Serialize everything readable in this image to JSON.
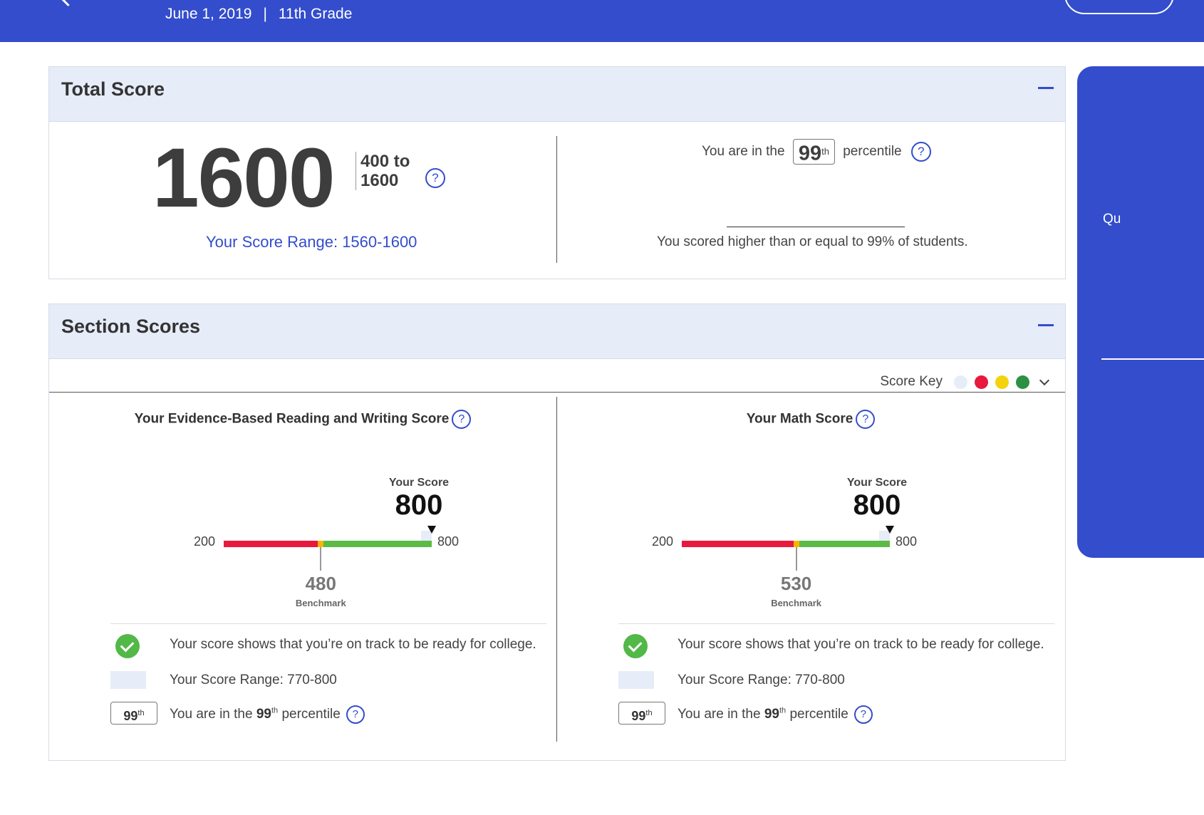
{
  "header": {
    "test_date": "June 1, 2019",
    "separator": "|",
    "grade": "11th Grade"
  },
  "side_panel": {
    "label": "Qu"
  },
  "total_score": {
    "title": "Total Score",
    "score": "1600",
    "range_top": "400 to",
    "range_bottom": "1600",
    "score_range": "Your Score Range: 1560-1600",
    "percentile_prefix": "You are in the",
    "percentile_value": "99",
    "percentile_suffix_sup": "th",
    "percentile_suffix": "percentile",
    "percentile_note": "You scored higher than or equal to 99% of students."
  },
  "section_scores": {
    "title": "Section Scores",
    "score_key_label": "Score Key",
    "score_key_colors": [
      "#e6ecf8",
      "#e8193c",
      "#f5d20d",
      "#2c9142"
    ],
    "sections": [
      {
        "title": "Your Evidence-Based Reading and Writing Score",
        "your_score_label": "Your Score",
        "score": "800",
        "score_value": 800,
        "scale_min": "200",
        "scale_max": "800",
        "min_value": 200,
        "max_value": 800,
        "benchmark": "480",
        "benchmark_value": 480,
        "benchmark_label": "Benchmark",
        "range_low": 770,
        "range_high": 800,
        "track_text": "Your score shows that you’re on track to be ready for college.",
        "score_range_text": "Your Score Range: 770-800",
        "percentile_badge": "99",
        "percentile_badge_sup": "th",
        "percentile_prefix": "You are in the",
        "percentile_value": "99",
        "percentile_sup": "th",
        "percentile_suffix": "percentile"
      },
      {
        "title": "Your Math Score",
        "your_score_label": "Your Score",
        "score": "800",
        "score_value": 800,
        "scale_min": "200",
        "scale_max": "800",
        "min_value": 200,
        "max_value": 800,
        "benchmark": "530",
        "benchmark_value": 530,
        "benchmark_label": "Benchmark",
        "range_low": 770,
        "range_high": 800,
        "track_text": "Your score shows that you’re on track to be ready for college.",
        "score_range_text": "Your Score Range: 770-800",
        "percentile_badge": "99",
        "percentile_badge_sup": "th",
        "percentile_prefix": "You are in the",
        "percentile_value": "99",
        "percentile_sup": "th",
        "percentile_suffix": "percentile"
      }
    ]
  },
  "colors": {
    "brand_blue": "#334dcc",
    "header_bg": "#e6ecf8",
    "bar_red": "#e8193c",
    "bar_yellow": "#f5b800",
    "bar_green": "#5cbb46",
    "check_green": "#52b848"
  }
}
